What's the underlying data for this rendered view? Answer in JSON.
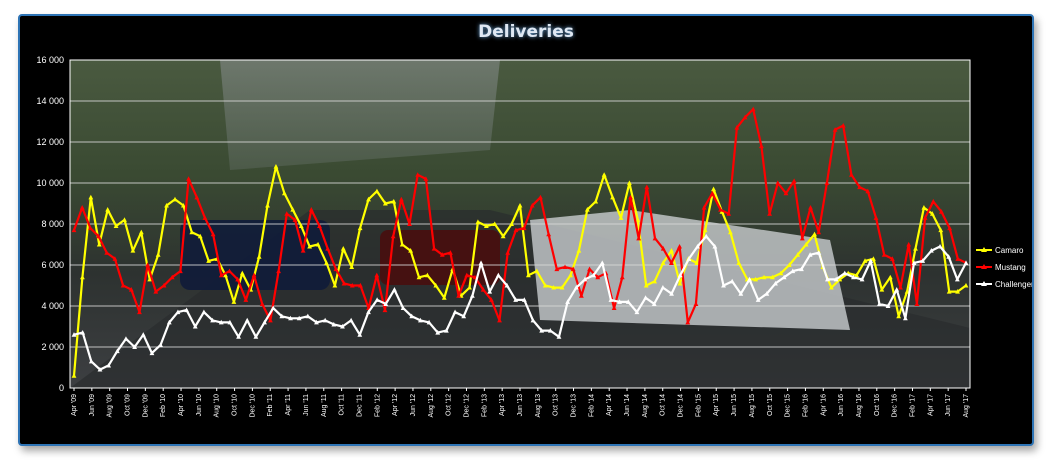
{
  "chart_data": {
    "type": "line",
    "title": "Deliveries",
    "ylim": [
      0,
      16000
    ],
    "yticks": [
      "0",
      "2 000",
      "4 000",
      "6 000",
      "8 000",
      "10 000",
      "12 000",
      "14 000",
      "16 000"
    ],
    "xtick_labels": [
      "Apr '09",
      "Jun '09",
      "Aug '09",
      "Oct '09",
      "Dec '09",
      "Feb '10",
      "Apr '10",
      "Jun '10",
      "Aug '10",
      "Oct '10",
      "Dec '10",
      "Feb '11",
      "Apr '11",
      "Jun '11",
      "Aug '11",
      "Oct '11",
      "Dec '11",
      "Feb '12",
      "Apr '12",
      "Jun '12",
      "Aug '12",
      "Oct '12",
      "Dec '12",
      "Feb '13",
      "Apr '13",
      "Jun '13",
      "Aug '13",
      "Oct '13",
      "Dec '13",
      "Feb '14",
      "Apr '14",
      "Jun '14",
      "Aug '14",
      "Oct '14",
      "Dec '14",
      "Feb '15",
      "Apr '15",
      "Jun '15",
      "Aug '15",
      "Oct '15",
      "Dec '15",
      "Feb '16",
      "Apr '16",
      "Jun '16",
      "Aug '16",
      "Oct '16",
      "Dec '16",
      "Feb '17",
      "Apr '17",
      "Jun '17",
      "Aug '17"
    ],
    "grid": true,
    "legend_position": "right",
    "series": [
      {
        "name": "Camaro",
        "color": "#ffff00",
        "values": [
          600,
          5400,
          9300,
          7000,
          8700,
          7900,
          8200,
          6700,
          7600,
          5300,
          6500,
          8900,
          9200,
          8900,
          7600,
          7400,
          6200,
          6300,
          5500,
          4200,
          5600,
          4800,
          6400,
          8900,
          10800,
          9500,
          8700,
          7900,
          6900,
          7000,
          6100,
          5000,
          6800,
          5900,
          7800,
          9200,
          9600,
          9000,
          9100,
          7000,
          6700,
          5400,
          5500,
          5000,
          4400,
          5800,
          4500,
          4900,
          8100,
          7900,
          8000,
          7400,
          8000,
          8900,
          5500,
          5700,
          5000,
          4900,
          4900,
          5500,
          6700,
          8700,
          9100,
          10400,
          9300,
          8300,
          10000,
          8200,
          5000,
          5200,
          6100,
          6700,
          5100,
          6300,
          6100,
          7700,
          9700,
          8600,
          7600,
          6100,
          5300,
          5300,
          5400,
          5400,
          5600,
          6000,
          6500,
          7000,
          7500,
          5900,
          4900,
          5300,
          5600,
          5500,
          6200,
          6300,
          4800,
          5400,
          3500,
          4700,
          6800,
          8800,
          8500,
          7700,
          4700,
          4700,
          5000
        ]
      },
      {
        "name": "Mustang",
        "color": "#ff0000",
        "values": [
          7700,
          8800,
          7800,
          7400,
          6600,
          6300,
          5000,
          4800,
          3700,
          6000,
          4700,
          5000,
          5400,
          5700,
          10200,
          9300,
          8300,
          7500,
          5500,
          5700,
          5300,
          4300,
          5500,
          4100,
          3300,
          5700,
          8500,
          8200,
          6700,
          8700,
          7900,
          6800,
          5800,
          5100,
          5000,
          5000,
          3900,
          5500,
          3800,
          7400,
          9200,
          8000,
          10400,
          10200,
          6800,
          6500,
          6600,
          4500,
          5500,
          5400,
          4800,
          4300,
          3300,
          6600,
          7700,
          7800,
          8900,
          9300,
          7500,
          5800,
          5900,
          5800,
          4500,
          5800,
          5400,
          5600,
          3900,
          5400,
          9300,
          7300,
          9800,
          7300,
          6800,
          6100,
          6900,
          3200,
          4100,
          8800,
          9500,
          8700,
          8500,
          12700,
          13200,
          13600,
          11800,
          8500,
          10000,
          9500,
          10100,
          7300,
          8800,
          7600,
          10000,
          12600,
          12800,
          10400,
          9800,
          9600,
          8300,
          6500,
          6300,
          4900,
          7000,
          4100,
          8300,
          9100,
          8600,
          7800,
          6300,
          6100
        ]
      },
      {
        "name": "Challenger",
        "color": "#ffffff",
        "values": [
          2600,
          2700,
          1300,
          900,
          1100,
          1800,
          2400,
          2000,
          2600,
          1700,
          2100,
          3200,
          3700,
          3800,
          3000,
          3700,
          3300,
          3200,
          3200,
          2500,
          3300,
          2500,
          3200,
          3900,
          3500,
          3400,
          3400,
          3500,
          3200,
          3300,
          3100,
          3000,
          3300,
          2600,
          3700,
          4300,
          4100,
          4800,
          3900,
          3500,
          3300,
          3200,
          2700,
          2800,
          3700,
          3500,
          4500,
          6100,
          4700,
          5500,
          5000,
          4300,
          4300,
          3300,
          2800,
          2800,
          2500,
          4200,
          4900,
          5300,
          5500,
          6100,
          4300,
          4200,
          4200,
          3700,
          4400,
          4100,
          4900,
          4600,
          5500,
          6300,
          6900,
          7400,
          6900,
          5000,
          5200,
          4600,
          5300,
          4300,
          4600,
          5100,
          5400,
          5700,
          5800,
          6500,
          6600,
          5300,
          5300,
          5600,
          5400,
          5300,
          6200,
          4100,
          4000,
          4800,
          3400,
          6100,
          6200,
          6700,
          6900,
          6400,
          5300,
          6100
        ]
      }
    ]
  }
}
